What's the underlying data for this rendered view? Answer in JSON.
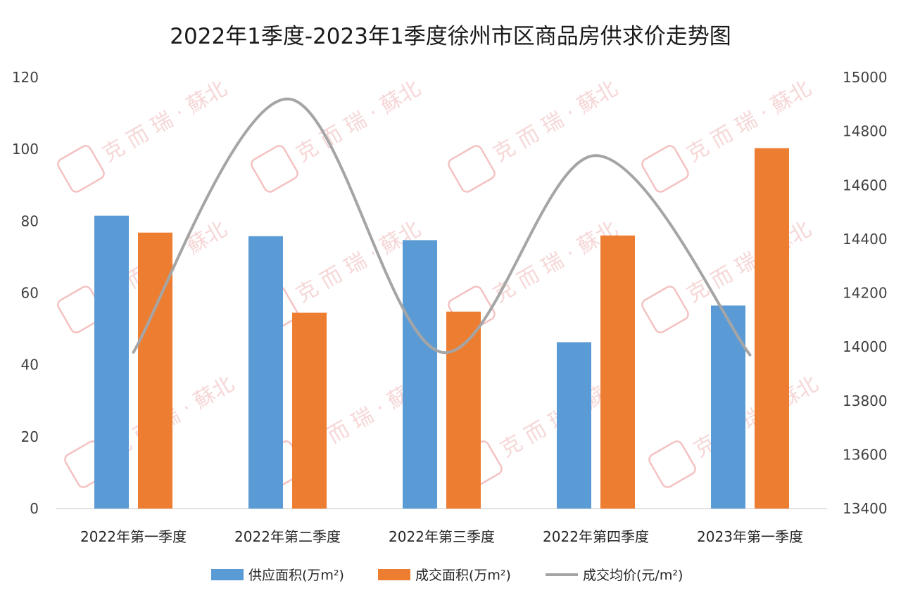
{
  "chart_data": {
    "type": "bar",
    "title": "2022年1季度-2023年1季度徐州市区商品房供求价走势图",
    "categories": [
      "2022年第一季度",
      "2022年第二季度",
      "2022年第三季度",
      "2022年第四季度",
      "2023年第一季度"
    ],
    "series": [
      {
        "name": "供应面积(万m²)",
        "type": "bar",
        "axis": "left",
        "color": "#5b9bd5",
        "values": [
          81.5,
          75.8,
          74.7,
          46.3,
          56.5
        ]
      },
      {
        "name": "成交面积(万m²)",
        "type": "bar",
        "axis": "left",
        "color": "#ed7d31",
        "values": [
          76.8,
          54.5,
          54.8,
          76.0,
          100.3
        ]
      },
      {
        "name": "成交均价(元/m²)",
        "type": "line",
        "axis": "right",
        "color": "#a5a5a5",
        "values": [
          13980,
          14920,
          13980,
          14710,
          13970
        ]
      }
    ],
    "y_left": {
      "min": 0,
      "max": 120,
      "ticks": [
        0,
        20,
        40,
        60,
        80,
        100,
        120
      ]
    },
    "y_right": {
      "min": 13400,
      "max": 15000,
      "ticks": [
        13400,
        13600,
        13800,
        14000,
        14200,
        14400,
        14600,
        14800,
        15000
      ]
    },
    "grid": false,
    "legend_position": "bottom"
  },
  "watermark": {
    "text": "克 而 瑞 · 蘇北",
    "color": "#f0b7b7"
  }
}
